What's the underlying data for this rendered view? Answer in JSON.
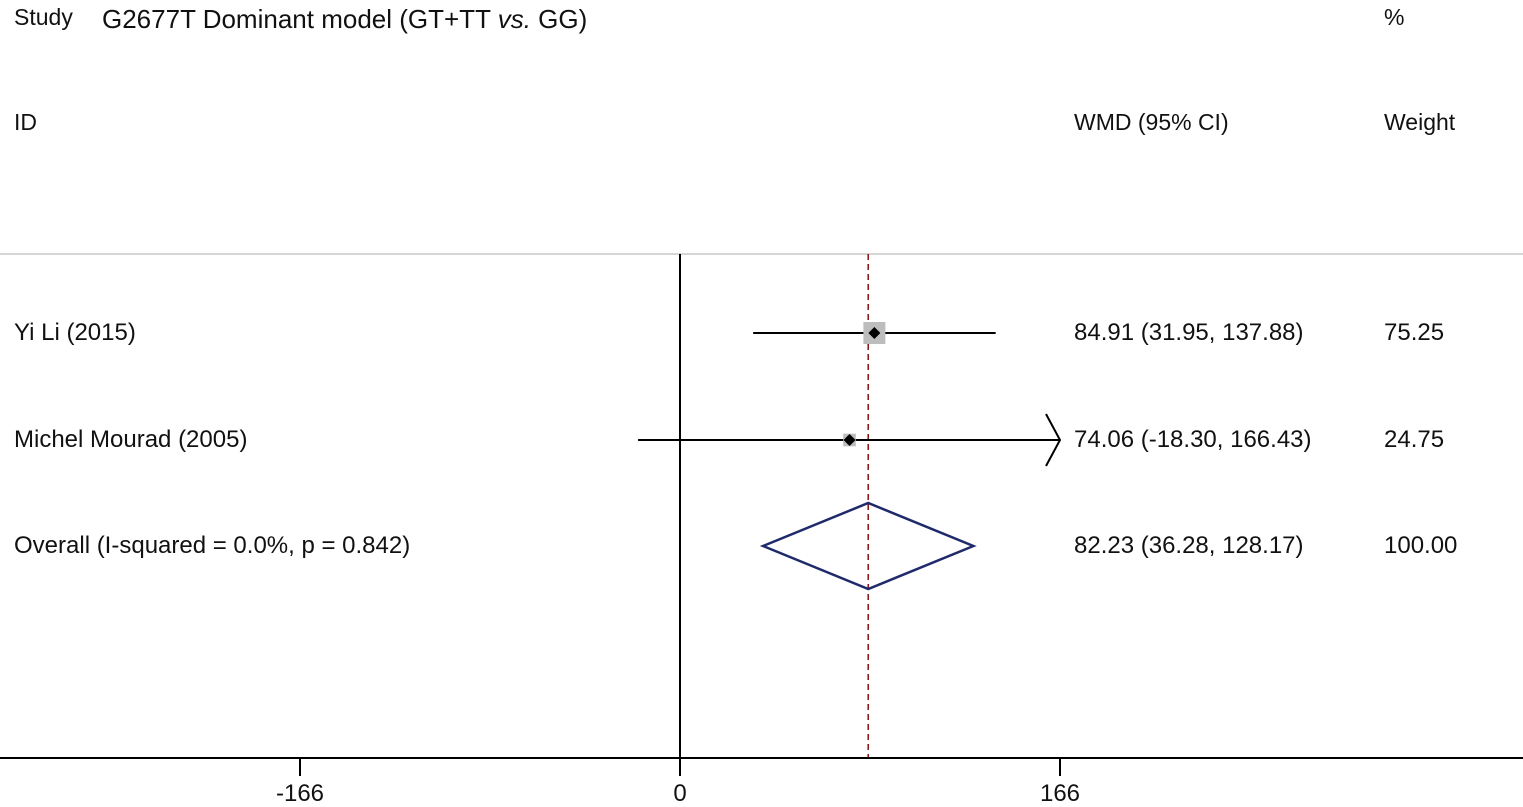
{
  "header": {
    "study_label": "Study",
    "title_main": "G2677T Dominant model (GT+TT ",
    "title_vs": "vs.",
    "title_end": " GG)",
    "percent_label": "%",
    "id_label": "ID",
    "effect_label": "WMD (95% CI)",
    "weight_label": "Weight"
  },
  "colors": {
    "axis": "#000000",
    "divider": "#c8c8c8",
    "ref_line": "#8b1a1a",
    "diamond": "#1f2a6b",
    "box": "#bdbdbd"
  },
  "chart_data": {
    "type": "forest",
    "measure": "WMD",
    "null_value": 0,
    "overall_ref": 82.23,
    "xlim": [
      -166,
      166
    ],
    "xticks": [
      {
        "value": -166,
        "label": "-166"
      },
      {
        "value": 0,
        "label": "0"
      },
      {
        "value": 166,
        "label": "166"
      }
    ],
    "studies": [
      {
        "id": "Yi Li (2015)",
        "est": 84.91,
        "lo": 31.95,
        "hi": 137.88,
        "ci_text": "84.91 (31.95, 137.88)",
        "weight": "75.25",
        "arrow_right": false
      },
      {
        "id": "Michel Mourad (2005)",
        "est": 74.06,
        "lo": -18.3,
        "hi": 166.43,
        "ci_text": "74.06 (-18.30, 166.43)",
        "weight": "24.75",
        "arrow_right": true
      }
    ],
    "overall": {
      "label": "Overall  (I-squared = 0.0%, p = 0.842)",
      "est": 82.23,
      "lo": 36.28,
      "hi": 128.17,
      "ci_text": "82.23 (36.28, 128.17)",
      "weight": "100.00"
    }
  }
}
